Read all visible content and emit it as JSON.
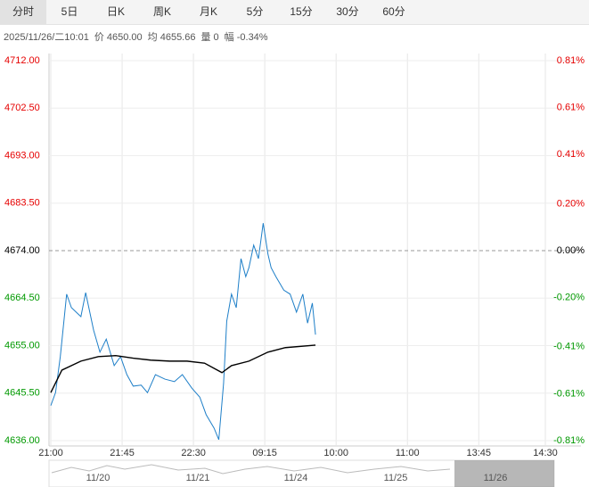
{
  "tabs": [
    "分时",
    "5日",
    "日K",
    "周K",
    "月K",
    "5分",
    "15分",
    "30分",
    "60分"
  ],
  "info": [
    "2025/11/26/二10:01",
    "价 4650.00",
    "均 4655.66",
    "量 0",
    "幅 -0.34%"
  ],
  "chart_data": {
    "type": "line",
    "series": [
      {
        "color": "#1e7fc8",
        "x": [
          0,
          3,
          6,
          10,
          13,
          19,
          22,
          27,
          31,
          35,
          40,
          44,
          48,
          52,
          57,
          61,
          66,
          72,
          78,
          83,
          89,
          94,
          98,
          103,
          106,
          109,
          111,
          114,
          117,
          120,
          123,
          125,
          128,
          131,
          134,
          137,
          139,
          142,
          147,
          151,
          155,
          159,
          162,
          165,
          167
        ],
        "values": [
          4643.0,
          4645.6,
          4652.8,
          4665.3,
          4662.6,
          4660.8,
          4665.6,
          4658.1,
          4653.7,
          4656.3,
          4651.0,
          4652.8,
          4649.2,
          4646.9,
          4647.1,
          4645.6,
          4649.2,
          4648.3,
          4647.8,
          4649.2,
          4646.5,
          4644.7,
          4641.2,
          4638.5,
          4636.2,
          4647.4,
          4659.9,
          4665.3,
          4662.6,
          4672.4,
          4668.8,
          4670.6,
          4675.1,
          4672.4,
          4679.5,
          4673.3,
          4670.6,
          4668.8,
          4666.1,
          4665.3,
          4661.7,
          4665.3,
          4659.5,
          4663.5,
          4657.2
        ]
      },
      {
        "color": "#000000",
        "x": [
          0,
          7,
          19,
          30,
          41,
          52,
          63,
          75,
          86,
          97,
          108,
          114,
          125,
          137,
          148,
          167
        ],
        "values": [
          4645.6,
          4650.1,
          4651.9,
          4652.8,
          4653.0,
          4652.5,
          4652.1,
          4651.9,
          4651.9,
          4651.5,
          4649.6,
          4651.0,
          4651.9,
          4653.7,
          4654.6,
          4655.1
        ]
      }
    ],
    "ylim": [
      4636,
      4712
    ],
    "yticks": [
      {
        "value": 4712,
        "label": "4712.00"
      },
      {
        "value": 4702.5,
        "label": "4702.50"
      },
      {
        "value": 4693,
        "label": "4693.00"
      },
      {
        "value": 4683.5,
        "label": "4683.50"
      },
      {
        "value": 4674,
        "label": "4674.00"
      },
      {
        "value": 4664.5,
        "label": "4664.50"
      },
      {
        "value": 4655,
        "label": "4655.00"
      },
      {
        "value": 4645.5,
        "label": "4645.50"
      },
      {
        "value": 4636,
        "label": "4636.00"
      }
    ],
    "y2lim": [
      -0.81,
      0.81
    ],
    "y2ticks": [
      {
        "value": 0.81,
        "label": "0.81%"
      },
      {
        "value": 0.61,
        "label": "0.61%"
      },
      {
        "value": 0.41,
        "label": "0.41%"
      },
      {
        "value": 0.2,
        "label": "0.20%"
      },
      {
        "value": 0,
        "label": "0.00%"
      },
      {
        "value": -0.2,
        "label": "-0.20%"
      },
      {
        "value": -0.41,
        "label": "-0.41%"
      },
      {
        "value": -0.61,
        "label": "-0.61%"
      },
      {
        "value": -0.81,
        "label": "-0.81%"
      }
    ],
    "xlim": [
      0,
      312
    ],
    "xticks": [
      {
        "value": 0,
        "label": "21:00"
      },
      {
        "value": 45,
        "label": "21:45"
      },
      {
        "value": 90,
        "label": "22:30"
      },
      {
        "value": 135,
        "label": "09:15"
      },
      {
        "value": 180,
        "label": "10:00"
      },
      {
        "value": 225,
        "label": "11:00"
      },
      {
        "value": 270,
        "label": "13:45"
      },
      {
        "value": 312,
        "label": "14:30"
      }
    ],
    "reference": 4674,
    "up_color": "#e60000",
    "down_color": "#009900"
  },
  "navigator": [
    "11/20",
    "11/21",
    "11/24",
    "11/25",
    "11/26"
  ]
}
